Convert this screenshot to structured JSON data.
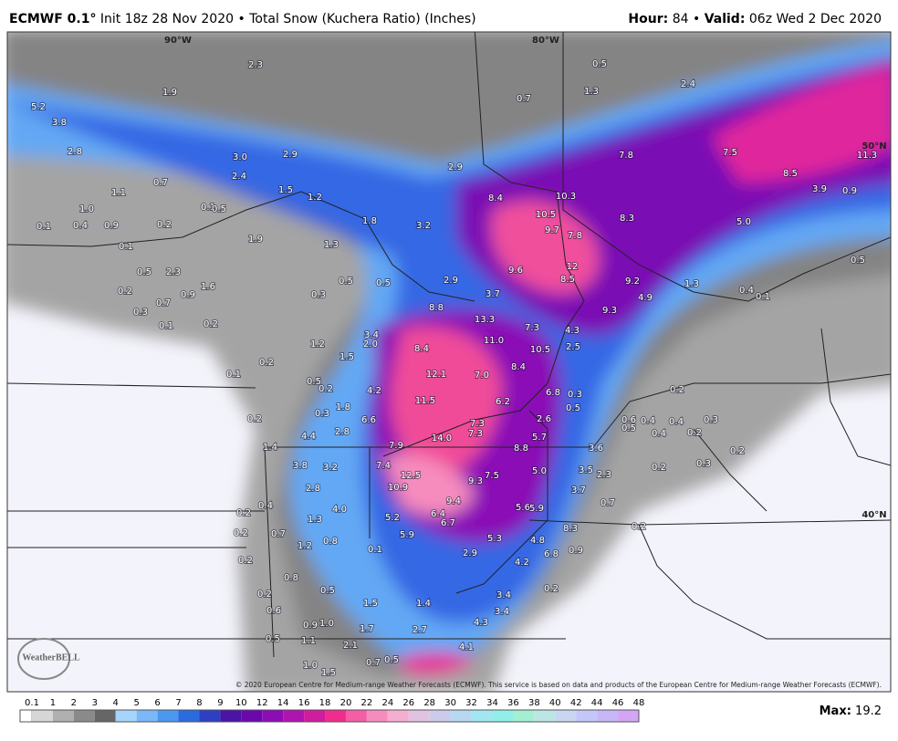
{
  "header": {
    "model": "ECMWF 0.1°",
    "run": "Init 18z 28 Nov 2020",
    "separator": "•",
    "product": "Total Snow (Kuchera Ratio) (Inches)",
    "hour_label": "Hour:",
    "hour": "84",
    "valid_label": "Valid:",
    "valid": "06z Wed 2 Dec 2020"
  },
  "map": {
    "graticule": [
      "90°W",
      "80°W",
      "50°N",
      "40°N"
    ],
    "labels": [
      "5.2",
      "1.9",
      "3.8",
      "2.8",
      "3.0",
      "2.9",
      "1.1",
      "0.7",
      "2.4",
      "0.1",
      "0.5",
      "1.5",
      "1.2",
      "0.1",
      "0.4",
      "0.9",
      "0.2",
      "1.0",
      "1.8",
      "3.2",
      "2.9",
      "1.3",
      "1.9",
      "0.1",
      "0.5",
      "2.3",
      "1.6",
      "0.9",
      "0.2",
      "0.7",
      "0.3",
      "0.1",
      "0.2",
      "0.5",
      "0.5",
      "0.3",
      "2.9",
      "8.4",
      "10.5",
      "10.3",
      "9.7",
      "7.8",
      "8.3",
      "7.8",
      "7.5",
      "8.5",
      "3.9",
      "0.9",
      "11.3",
      "5.0",
      "0.5",
      "9.6",
      "8.5",
      "12",
      "9.2",
      "4.9",
      "1.3",
      "0.4",
      "0.1",
      "9.3",
      "3.7",
      "8.8",
      "13.3",
      "7.3",
      "4.3",
      "10.5",
      "2.5",
      "11.0",
      "3.4",
      "2.0",
      "1.2",
      "1.5",
      "8.4",
      "8.4",
      "12.1",
      "7.0",
      "0.2",
      "0.1",
      "0.5",
      "0.2",
      "4.2",
      "11.5",
      "6.2",
      "6.8",
      "0.3",
      "0.5",
      "0.2",
      "1.8",
      "0.3",
      "6.6",
      "7.3",
      "2.6",
      "0.2",
      "2.8",
      "4.4",
      "14.0",
      "7.3",
      "5.7",
      "0.6",
      "0.5",
      "0.4",
      "0.4",
      "0.3",
      "0.4",
      "0.2",
      "7.9",
      "8.8",
      "3.6",
      "0.2",
      "1.4",
      "3.8",
      "3.2",
      "7.4",
      "12.5",
      "7.5",
      "9.3",
      "5.0",
      "3.5",
      "2.3",
      "0.2",
      "0.3",
      "2.8",
      "10.9",
      "3.7",
      "9.4",
      "0.2",
      "0.4",
      "4.0",
      "5.6",
      "5.9",
      "0.7",
      "1.3",
      "5.2",
      "6.4",
      "6.7",
      "8.3",
      "0.2",
      "0.2",
      "0.7",
      "5.9",
      "5.3",
      "4.8",
      "1.2",
      "0.8",
      "0.1",
      "2.9",
      "6.8",
      "0.9",
      "0.2",
      "4.2",
      "0.8",
      "0.2",
      "0.2",
      "0.5",
      "3.4",
      "0.6",
      "1.5",
      "1.4",
      "3.4",
      "4.3",
      "0.9",
      "1.0",
      "1.7",
      "2.7",
      "0.5",
      "1.1",
      "2.1",
      "4.1",
      "0.7",
      "0.5",
      "1.0",
      "1.5",
      "2.3",
      "0.5",
      "2.4",
      "1.3",
      "0.7"
    ],
    "logo": "WeatherBELL",
    "credit": "© 2020 European Centre for Medium-range Weather Forecasts (ECMWF). This service is based on data and products of the European Centre for Medium-range Weather Forecasts (ECMWF)."
  },
  "colorbar": {
    "ticks": [
      0.1,
      1,
      2,
      3,
      4,
      5,
      6,
      7,
      8,
      9,
      10,
      12,
      14,
      16,
      18,
      20,
      22,
      24,
      26,
      28,
      30,
      32,
      34,
      36,
      38,
      40,
      42,
      44,
      46,
      48
    ],
    "colors": [
      "#d6d6d6",
      "#b0b0b0",
      "#8a8a8a",
      "#666666",
      "#a6d4fa",
      "#7ab8f8",
      "#4c98f0",
      "#2a6ce0",
      "#2e3fc4",
      "#4a14a6",
      "#6a08ae",
      "#8c0cb6",
      "#b014ae",
      "#d01c9e",
      "#f02c8c",
      "#f45ea6",
      "#f68cbe",
      "#f6aed0",
      "#e2c2e2",
      "#cccbea",
      "#b6d8f0",
      "#a2e6f2",
      "#92eee8",
      "#a4eed2",
      "#bce6e6",
      "#c8d6f2",
      "#c2c6f8",
      "#c8b6f6",
      "#d2a6f4"
    ],
    "max_label": "Max:",
    "max": "19.2"
  }
}
